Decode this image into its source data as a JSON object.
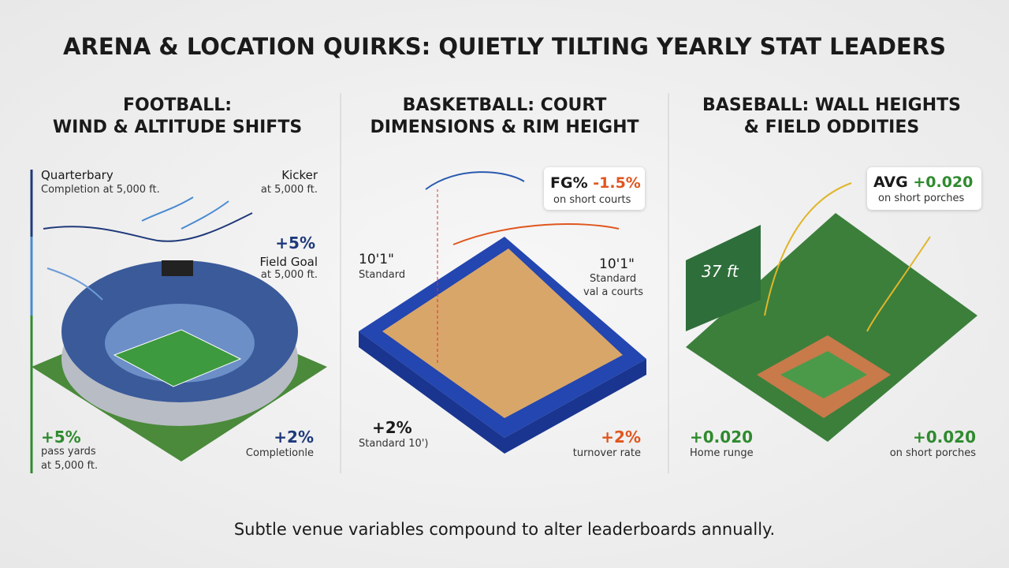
{
  "title": "ARENA & LOCATION QUIRKS: QUIETLY TILTING YEARLY STAT LEADERS",
  "panels": [
    {
      "heading": [
        "FOOTBALL:",
        "WIND & ALTITUDE SHIFTS"
      ],
      "callouts": [
        {
          "lines": [
            "Quarterbary",
            "Completion at 5,000 ft."
          ]
        },
        {
          "lines": [
            "Kicker",
            "at 5,000 ft."
          ]
        },
        {
          "lines": [
            "+5%",
            "Field Goal",
            "at 5,000 ft."
          ]
        },
        {
          "lines": [
            "+5%",
            "pass yards",
            "at 5,000 ft."
          ]
        },
        {
          "lines": [
            "+2%",
            "Completionle"
          ]
        }
      ]
    },
    {
      "heading": [
        "BASKETBALL: COURT",
        "DIMENSIONS & RIM HEIGHT"
      ],
      "callouts": [
        {
          "lines": [
            "FG%",
            "-1.5%",
            "on short courts"
          ]
        },
        {
          "lines": [
            "10'1\"",
            "Standard"
          ]
        },
        {
          "lines": [
            "10'1\"",
            "Standard",
            "val a courts"
          ]
        },
        {
          "lines": [
            "+2%",
            "Standard 10')"
          ]
        },
        {
          "lines": [
            "+2%",
            "turnover rate"
          ]
        }
      ]
    },
    {
      "heading": [
        "BASEBALL: WALL HEIGHTS",
        "& FIELD ODDITIES"
      ],
      "callouts": [
        {
          "lines": [
            "AVG",
            "+0.020",
            "on short porches"
          ]
        },
        {
          "lines": [
            "37 ft"
          ]
        },
        {
          "lines": [
            "+0.020",
            "Home runge"
          ]
        },
        {
          "lines": [
            "+0.020",
            "on short porches"
          ]
        }
      ]
    }
  ],
  "footer": "Subtle venue variables compound to alter leaderboards annually."
}
